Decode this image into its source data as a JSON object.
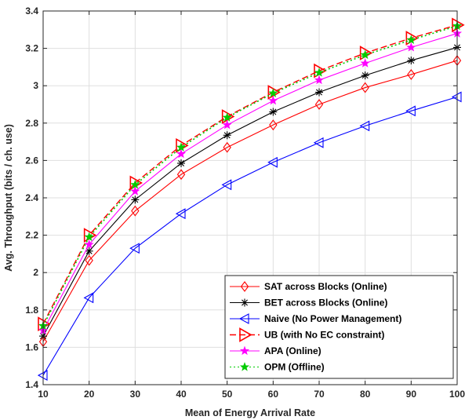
{
  "chart_data": {
    "type": "line",
    "title": "",
    "xlabel": "Mean of Energy Arrival Rate",
    "ylabel": "Avg. Throughput (bits / ch. use)",
    "x": [
      10,
      20,
      30,
      40,
      50,
      60,
      70,
      80,
      90,
      100
    ],
    "xlim": [
      10,
      100
    ],
    "ylim": [
      1.4,
      3.4
    ],
    "x_ticks": [
      "10",
      "20",
      "30",
      "40",
      "50",
      "60",
      "70",
      "80",
      "90",
      "100"
    ],
    "y_ticks": [
      "1.4",
      "1.6",
      "1.8",
      "2",
      "2.2",
      "2.4",
      "2.6",
      "2.8",
      "3",
      "3.2",
      "3.4"
    ],
    "grid": true,
    "legend_position": "bottom-right",
    "series": [
      {
        "name": "SAT across Blocks (Online)",
        "color": "#ff0000",
        "marker": "diamond",
        "dash": "solid",
        "values": [
          1.63,
          2.065,
          2.33,
          2.525,
          2.67,
          2.79,
          2.9,
          2.99,
          3.06,
          3.135
        ]
      },
      {
        "name": "BET across Blocks (Online)",
        "color": "#000000",
        "marker": "asterisk",
        "dash": "solid",
        "values": [
          1.66,
          2.115,
          2.39,
          2.585,
          2.735,
          2.86,
          2.965,
          3.055,
          3.135,
          3.205
        ]
      },
      {
        "name": "Naive (No Power Management)",
        "color": "#0000ff",
        "marker": "triangle-left",
        "dash": "solid",
        "values": [
          1.45,
          1.865,
          2.13,
          2.315,
          2.47,
          2.59,
          2.695,
          2.785,
          2.865,
          2.94
        ]
      },
      {
        "name": "UB (with No EC constraint)",
        "color": "#ff0000",
        "marker": "triangle-right",
        "dash": "dashed",
        "values": [
          1.725,
          2.2,
          2.48,
          2.68,
          2.835,
          2.965,
          3.08,
          3.175,
          3.255,
          3.325
        ]
      },
      {
        "name": "APA (Online)",
        "color": "#ff00ff",
        "marker": "star",
        "dash": "solid",
        "values": [
          1.69,
          2.15,
          2.435,
          2.635,
          2.79,
          2.92,
          3.03,
          3.12,
          3.205,
          3.28
        ]
      },
      {
        "name": "OPM (Offline)",
        "color": "#00cc00",
        "marker": "star",
        "dash": "dotted",
        "values": [
          1.715,
          2.19,
          2.47,
          2.67,
          2.83,
          2.96,
          3.07,
          3.165,
          3.245,
          3.32
        ]
      }
    ]
  }
}
